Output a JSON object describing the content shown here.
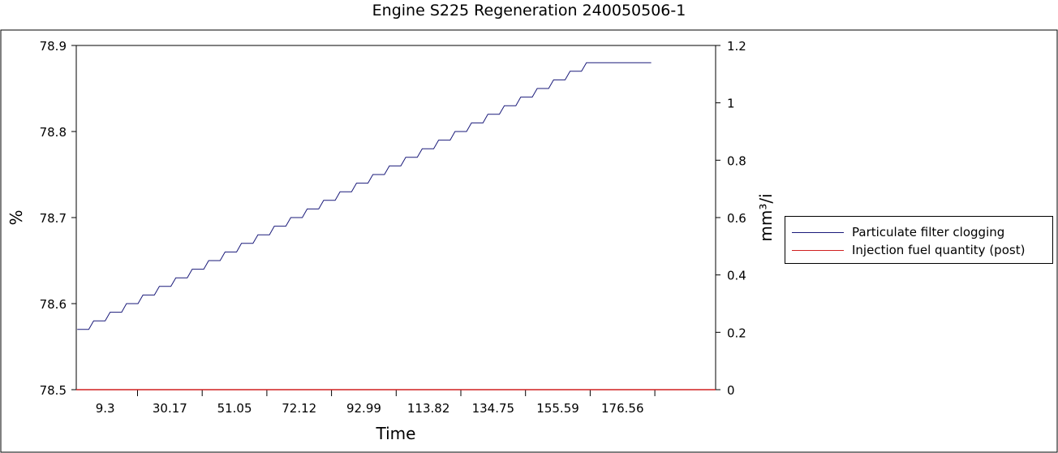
{
  "chart_data": {
    "type": "line",
    "title": "Engine S225  Regeneration  240050506-1",
    "xlabel": "Time",
    "ylabel_left": "%",
    "ylabel_right": "mm³/i",
    "x_ticks": [
      "9.3",
      "30.17",
      "51.05",
      "72.12",
      "92.99",
      "113.82",
      "134.75",
      "155.59",
      "176.56"
    ],
    "ylim_left": [
      78.5,
      78.9
    ],
    "y_ticks_left": [
      "78.5",
      "78.6",
      "78.7",
      "78.8",
      "78.9"
    ],
    "ylim_right": [
      0,
      1.2
    ],
    "y_ticks_right": [
      "0",
      "0.2",
      "0.4",
      "0.6",
      "0.8",
      "1",
      "1.2"
    ],
    "xlim": [
      0,
      198.5
    ],
    "grid": false,
    "legend_position": "right",
    "series": [
      {
        "name": "Particulate filter clogging",
        "axis": "left",
        "color": "#1a1a7a",
        "step": true,
        "x_start": 0.3,
        "x_end": 178.5,
        "step_width": 5.1,
        "start_value": 78.57,
        "increment": 0.01,
        "end_value": 78.88
      },
      {
        "name": "Injection fuel quantity (post)",
        "axis": "right",
        "color": "#d02020",
        "x": [
          0,
          198.5
        ],
        "values": [
          0,
          0
        ]
      }
    ]
  }
}
